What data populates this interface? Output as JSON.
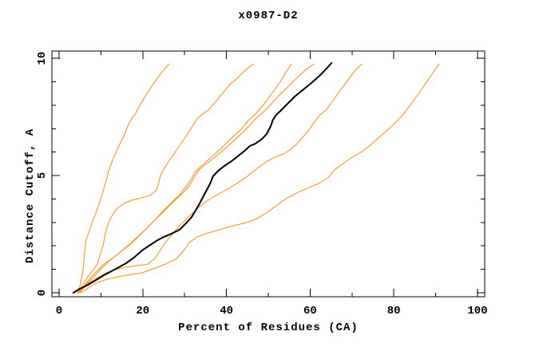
{
  "chart_data": {
    "type": "line",
    "title": "x0987-D2",
    "xlabel": "Percent of Residues (CA)",
    "ylabel": "Distance Cutoff, A",
    "xlim": [
      -1.72,
      101.72
    ],
    "ylim": [
      -0.17,
      10.31
    ],
    "x_ticks_major": [
      0,
      20,
      40,
      60,
      80,
      100
    ],
    "x_ticks_minor": [
      10,
      30,
      50,
      70,
      90
    ],
    "y_ticks_major": [
      0,
      5,
      10
    ],
    "y_ticks_minor": [
      1,
      2,
      3,
      4,
      6,
      7,
      8,
      9
    ],
    "grid": false,
    "legend": "none",
    "colors": {
      "background": "#ffffff",
      "axis": "#000000",
      "orange_series": "#ff8c00",
      "highlight_series": "#000000"
    },
    "series": [
      {
        "name": "orange-1",
        "color": "#ff8c00",
        "width": 1,
        "points": [
          [
            4.4,
            0.0
          ],
          [
            5.0,
            0.31
          ],
          [
            5.3,
            0.58
          ],
          [
            5.7,
            0.92
          ],
          [
            5.9,
            1.33
          ],
          [
            6.1,
            1.77
          ],
          [
            6.5,
            2.28
          ],
          [
            7.3,
            2.69
          ],
          [
            8.4,
            3.23
          ],
          [
            9.4,
            3.71
          ],
          [
            10.3,
            4.22
          ],
          [
            11.3,
            4.8
          ],
          [
            11.8,
            5.17
          ],
          [
            12.8,
            5.68
          ],
          [
            14.1,
            6.19
          ],
          [
            15.5,
            6.7
          ],
          [
            16.4,
            7.11
          ],
          [
            17.4,
            7.45
          ],
          [
            18.3,
            7.65
          ],
          [
            19.5,
            8.06
          ],
          [
            21.0,
            8.5
          ],
          [
            22.9,
            9.01
          ],
          [
            24.6,
            9.42
          ],
          [
            26.3,
            9.76
          ]
        ]
      },
      {
        "name": "orange-2",
        "color": "#ff8c00",
        "width": 1,
        "points": [
          [
            4.6,
            0.0
          ],
          [
            5.5,
            0.31
          ],
          [
            6.5,
            0.58
          ],
          [
            7.4,
            0.82
          ],
          [
            8.4,
            1.02
          ],
          [
            9.2,
            1.26
          ],
          [
            9.9,
            1.67
          ],
          [
            10.5,
            2.01
          ],
          [
            10.9,
            2.38
          ],
          [
            11.3,
            2.72
          ],
          [
            12.2,
            3.16
          ],
          [
            13.7,
            3.57
          ],
          [
            15.5,
            3.81
          ],
          [
            17.4,
            3.95
          ],
          [
            19.7,
            4.05
          ],
          [
            21.8,
            4.15
          ],
          [
            23.3,
            4.39
          ],
          [
            23.9,
            4.73
          ],
          [
            24.2,
            5.0
          ],
          [
            25.2,
            5.34
          ],
          [
            26.5,
            5.68
          ],
          [
            28.1,
            6.09
          ],
          [
            29.4,
            6.43
          ],
          [
            30.3,
            6.67
          ],
          [
            31.5,
            7.01
          ],
          [
            32.8,
            7.38
          ],
          [
            34.2,
            7.62
          ],
          [
            35.5,
            7.76
          ],
          [
            37.0,
            8.06
          ],
          [
            38.9,
            8.47
          ],
          [
            40.8,
            8.88
          ],
          [
            42.6,
            9.15
          ],
          [
            44.3,
            9.46
          ],
          [
            46.4,
            9.76
          ]
        ]
      },
      {
        "name": "orange-3",
        "color": "#ff8c00",
        "width": 1,
        "points": [
          [
            4.8,
            0.0
          ],
          [
            5.7,
            0.24
          ],
          [
            6.9,
            0.51
          ],
          [
            8.0,
            0.75
          ],
          [
            9.2,
            0.95
          ],
          [
            10.7,
            1.22
          ],
          [
            12.6,
            1.46
          ],
          [
            14.9,
            1.77
          ],
          [
            17.0,
            2.07
          ],
          [
            18.7,
            2.35
          ],
          [
            20.4,
            2.65
          ],
          [
            22.5,
            3.03
          ],
          [
            24.6,
            3.44
          ],
          [
            26.7,
            3.81
          ],
          [
            28.6,
            4.15
          ],
          [
            30.3,
            4.52
          ],
          [
            31.5,
            4.83
          ],
          [
            32.6,
            5.17
          ],
          [
            34.0,
            5.41
          ],
          [
            35.5,
            5.65
          ],
          [
            37.4,
            5.95
          ],
          [
            39.5,
            6.29
          ],
          [
            41.6,
            6.67
          ],
          [
            43.5,
            6.97
          ],
          [
            45.4,
            7.38
          ],
          [
            46.9,
            7.62
          ],
          [
            48.1,
            7.86
          ],
          [
            49.6,
            8.2
          ],
          [
            51.3,
            8.61
          ],
          [
            52.9,
            9.01
          ],
          [
            54.0,
            9.35
          ],
          [
            55.5,
            9.76
          ]
        ]
      },
      {
        "name": "orange-4",
        "color": "#ff8c00",
        "width": 1,
        "points": [
          [
            5.0,
            0.0
          ],
          [
            6.1,
            0.27
          ],
          [
            7.4,
            0.54
          ],
          [
            8.8,
            0.78
          ],
          [
            10.1,
            1.02
          ],
          [
            11.8,
            1.33
          ],
          [
            13.9,
            1.63
          ],
          [
            16.0,
            1.94
          ],
          [
            18.1,
            2.28
          ],
          [
            20.2,
            2.62
          ],
          [
            22.5,
            3.03
          ],
          [
            25.0,
            3.47
          ],
          [
            27.3,
            3.88
          ],
          [
            29.4,
            4.22
          ],
          [
            31.1,
            4.56
          ],
          [
            32.3,
            4.93
          ],
          [
            33.6,
            5.27
          ],
          [
            35.3,
            5.51
          ],
          [
            37.2,
            5.78
          ],
          [
            39.3,
            6.09
          ],
          [
            41.4,
            6.43
          ],
          [
            43.5,
            6.77
          ],
          [
            45.4,
            7.11
          ],
          [
            47.1,
            7.45
          ],
          [
            48.9,
            7.72
          ],
          [
            50.6,
            8.03
          ],
          [
            52.7,
            8.44
          ],
          [
            54.8,
            8.81
          ],
          [
            56.9,
            9.18
          ],
          [
            59.0,
            9.52
          ],
          [
            60.9,
            9.76
          ]
        ]
      },
      {
        "name": "orange-5",
        "color": "#ff8c00",
        "width": 1,
        "points": [
          [
            5.0,
            0.03
          ],
          [
            6.5,
            0.34
          ],
          [
            7.8,
            0.51
          ],
          [
            9.5,
            0.68
          ],
          [
            11.3,
            0.85
          ],
          [
            13.5,
            0.99
          ],
          [
            16.0,
            1.09
          ],
          [
            18.7,
            1.16
          ],
          [
            21.2,
            1.22
          ],
          [
            22.9,
            1.46
          ],
          [
            24.0,
            1.77
          ],
          [
            25.4,
            2.14
          ],
          [
            27.1,
            2.52
          ],
          [
            29.2,
            2.93
          ],
          [
            31.5,
            3.33
          ],
          [
            33.8,
            3.71
          ],
          [
            35.9,
            3.98
          ],
          [
            37.8,
            4.18
          ],
          [
            39.9,
            4.39
          ],
          [
            42.2,
            4.63
          ],
          [
            44.7,
            4.93
          ],
          [
            47.1,
            5.27
          ],
          [
            49.4,
            5.58
          ],
          [
            51.5,
            5.78
          ],
          [
            53.6,
            5.92
          ],
          [
            55.2,
            6.09
          ],
          [
            56.7,
            6.33
          ],
          [
            58.2,
            6.63
          ],
          [
            59.7,
            6.94
          ],
          [
            61.1,
            7.31
          ],
          [
            62.4,
            7.59
          ],
          [
            63.9,
            7.82
          ],
          [
            65.5,
            8.2
          ],
          [
            67.2,
            8.64
          ],
          [
            69.1,
            9.08
          ],
          [
            70.8,
            9.49
          ],
          [
            72.3,
            9.76
          ]
        ]
      },
      {
        "name": "orange-6",
        "color": "#ff8c00",
        "width": 1,
        "points": [
          [
            5.3,
            0.0
          ],
          [
            7.3,
            0.24
          ],
          [
            9.2,
            0.44
          ],
          [
            11.5,
            0.58
          ],
          [
            14.1,
            0.68
          ],
          [
            17.0,
            0.78
          ],
          [
            19.8,
            0.85
          ],
          [
            22.5,
            1.02
          ],
          [
            25.4,
            1.22
          ],
          [
            27.9,
            1.43
          ],
          [
            29.8,
            1.8
          ],
          [
            31.1,
            2.14
          ],
          [
            33.0,
            2.38
          ],
          [
            35.5,
            2.55
          ],
          [
            38.4,
            2.69
          ],
          [
            41.6,
            2.86
          ],
          [
            44.7,
            2.99
          ],
          [
            47.3,
            3.16
          ],
          [
            49.8,
            3.44
          ],
          [
            52.1,
            3.74
          ],
          [
            54.2,
            4.01
          ],
          [
            56.7,
            4.25
          ],
          [
            59.4,
            4.46
          ],
          [
            62.0,
            4.66
          ],
          [
            64.3,
            4.9
          ],
          [
            65.8,
            5.24
          ],
          [
            67.6,
            5.48
          ],
          [
            69.8,
            5.75
          ],
          [
            72.1,
            5.99
          ],
          [
            73.9,
            6.22
          ],
          [
            76.0,
            6.56
          ],
          [
            78.2,
            6.9
          ],
          [
            80.3,
            7.24
          ],
          [
            82.3,
            7.62
          ],
          [
            84.0,
            8.03
          ],
          [
            85.7,
            8.44
          ],
          [
            87.4,
            8.88
          ],
          [
            89.1,
            9.32
          ],
          [
            90.8,
            9.76
          ]
        ]
      },
      {
        "name": "black-highlight",
        "color": "#000000",
        "width": 2,
        "points": [
          [
            3.4,
            0.0
          ],
          [
            5.0,
            0.17
          ],
          [
            6.9,
            0.34
          ],
          [
            8.8,
            0.54
          ],
          [
            10.7,
            0.75
          ],
          [
            13.9,
            1.05
          ],
          [
            16.0,
            1.26
          ],
          [
            17.9,
            1.5
          ],
          [
            19.8,
            1.8
          ],
          [
            21.8,
            2.04
          ],
          [
            23.5,
            2.24
          ],
          [
            25.0,
            2.38
          ],
          [
            26.9,
            2.52
          ],
          [
            28.8,
            2.69
          ],
          [
            30.3,
            2.96
          ],
          [
            31.7,
            3.23
          ],
          [
            32.8,
            3.57
          ],
          [
            33.8,
            3.88
          ],
          [
            34.5,
            4.12
          ],
          [
            35.3,
            4.39
          ],
          [
            36.1,
            4.66
          ],
          [
            36.8,
            4.97
          ],
          [
            38.0,
            5.2
          ],
          [
            39.5,
            5.41
          ],
          [
            41.2,
            5.61
          ],
          [
            42.7,
            5.82
          ],
          [
            44.3,
            6.05
          ],
          [
            45.6,
            6.26
          ],
          [
            46.9,
            6.36
          ],
          [
            48.5,
            6.56
          ],
          [
            49.6,
            6.77
          ],
          [
            50.6,
            7.11
          ],
          [
            51.1,
            7.38
          ],
          [
            51.9,
            7.59
          ],
          [
            53.1,
            7.79
          ],
          [
            54.6,
            8.06
          ],
          [
            56.5,
            8.4
          ],
          [
            58.4,
            8.67
          ],
          [
            60.3,
            8.95
          ],
          [
            62.2,
            9.25
          ],
          [
            63.7,
            9.52
          ],
          [
            65.1,
            9.8
          ]
        ]
      }
    ]
  }
}
